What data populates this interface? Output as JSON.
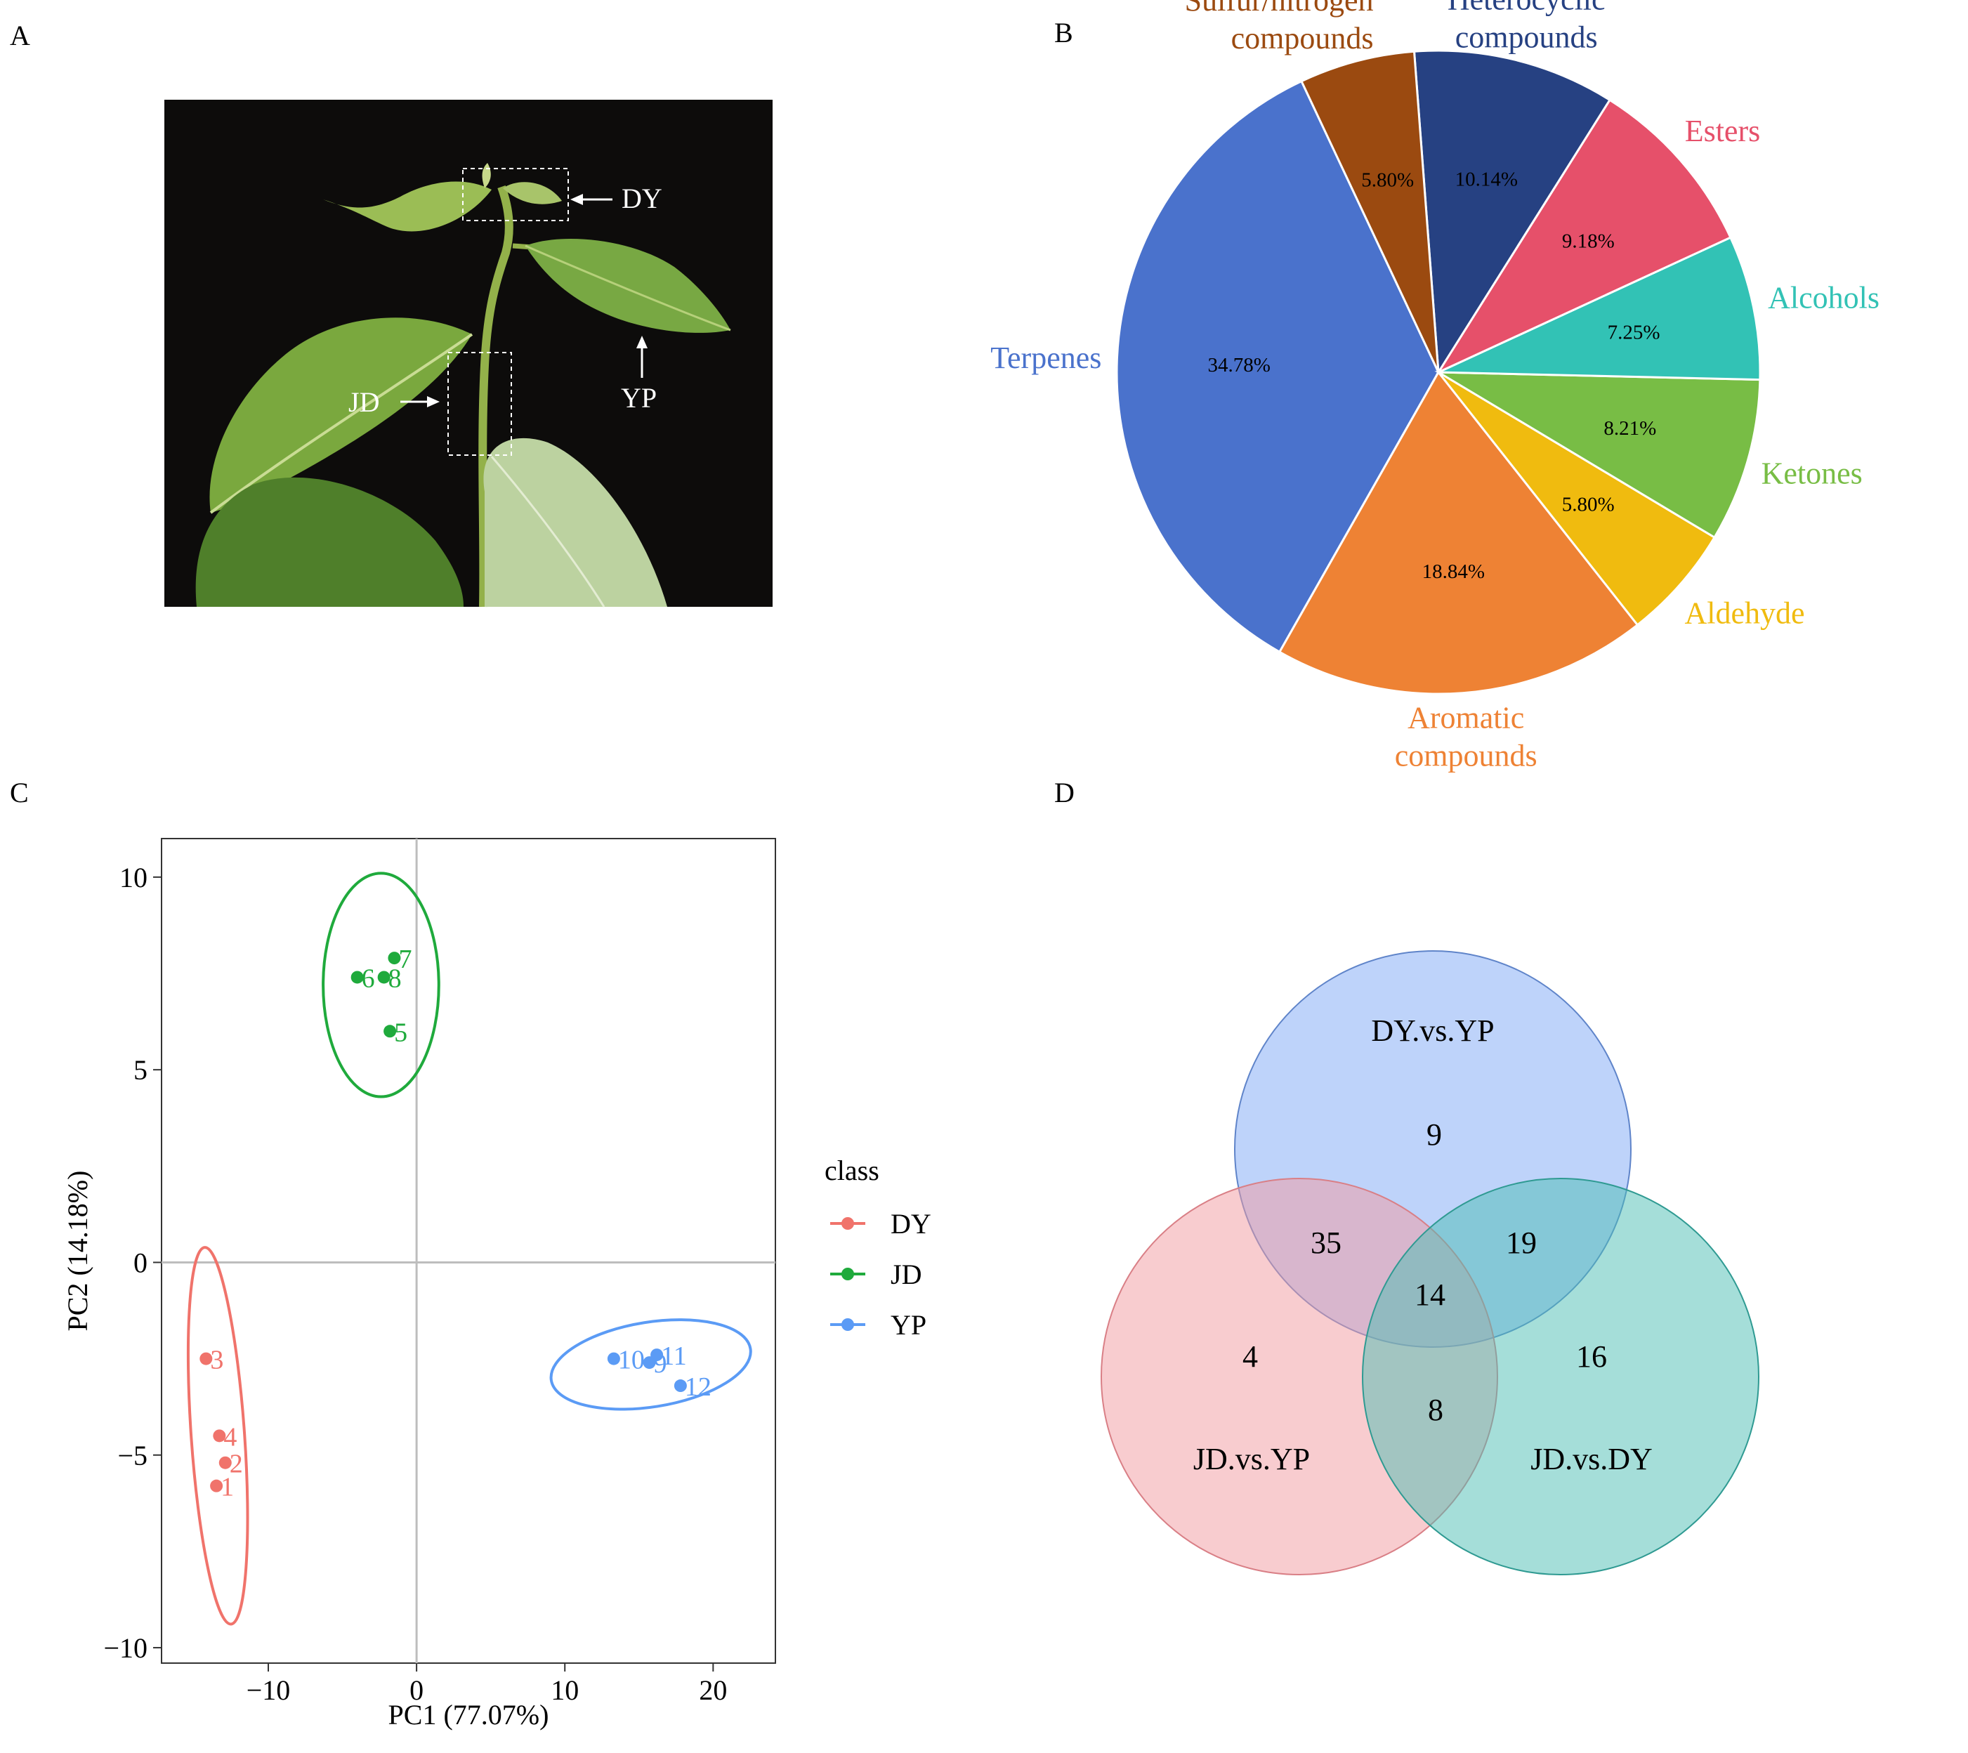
{
  "panel_labels": [
    "A",
    "B",
    "C",
    "D"
  ],
  "photo": {
    "labels": [
      "DY",
      "JD",
      "YP"
    ],
    "colors": {
      "background": "#0d0c0b",
      "leaf": "#6a9a3a",
      "leaf_light": "#a8c46a",
      "leaf_dark": "#3f6d20",
      "stem": "#93b14a"
    }
  },
  "chart_data": [
    {
      "type": "pie",
      "panel": "B",
      "slices": [
        {
          "label": "Terpenes",
          "value": 34.78,
          "pct_label": "34.78%",
          "color": "#4a72cc"
        },
        {
          "label": "Aromatic compounds",
          "value": 18.84,
          "pct_label": "18.84%",
          "color": "#ee8234",
          "lines": [
            "Aromatic",
            "compounds"
          ]
        },
        {
          "label": "Aldehyde",
          "value": 5.8,
          "pct_label": "5.80%",
          "color": "#f0bb0f"
        },
        {
          "label": "Ketones",
          "value": 8.21,
          "pct_label": "8.21%",
          "color": "#78bd45"
        },
        {
          "label": "Alcohols",
          "value": 7.25,
          "pct_label": "7.25%",
          "color": "#32c2b5"
        },
        {
          "label": "Esters",
          "value": 9.18,
          "pct_label": "9.18%",
          "color": "#e6506a"
        },
        {
          "label": "Heterocyclic compounds",
          "value": 10.14,
          "pct_label": "10.14%",
          "color": "#264182",
          "lines": [
            "Heterocyclic",
            "compounds"
          ]
        },
        {
          "label": "Sulfur/nitrogen compounds",
          "value": 5.8,
          "pct_label": "5.80%",
          "color": "#9b4a10",
          "lines": [
            "Sulfur/nitrogen",
            "compounds"
          ]
        }
      ]
    },
    {
      "type": "scatter",
      "panel": "C",
      "xlabel": "PC1 (77.07%)",
      "ylabel": "PC2 (14.18%)",
      "xlim": [
        -17.2,
        24.2
      ],
      "ylim": [
        -10.4,
        11.0
      ],
      "xticks": [
        -10,
        0,
        10,
        20
      ],
      "yticks": [
        -10,
        -5,
        0,
        5,
        10
      ],
      "xtick_labels": [
        "−10",
        "0",
        "10",
        "20"
      ],
      "ytick_labels": [
        "−10",
        "−5",
        "0",
        "5",
        "10"
      ],
      "legend_title": "class",
      "grid": false,
      "zero_lines": true,
      "series": [
        {
          "name": "DY",
          "color": "#f0736b",
          "points": [
            {
              "x": -13.5,
              "y": -5.8,
              "label": "1"
            },
            {
              "x": -12.9,
              "y": -5.2,
              "label": "2"
            },
            {
              "x": -14.2,
              "y": -2.5,
              "label": "3"
            },
            {
              "x": -13.3,
              "y": -4.5,
              "label": "4"
            }
          ],
          "ellipse": {
            "cx": -13.4,
            "cy": -4.5,
            "rx": 1.8,
            "ry": 4.9,
            "angle": -4
          }
        },
        {
          "name": "JD",
          "color": "#1faa3c",
          "points": [
            {
              "x": -1.8,
              "y": 6.0,
              "label": "5"
            },
            {
              "x": -4.0,
              "y": 7.4,
              "label": "6"
            },
            {
              "x": -1.5,
              "y": 7.9,
              "label": "7"
            },
            {
              "x": -2.2,
              "y": 7.4,
              "label": "8"
            }
          ],
          "ellipse": {
            "cx": -2.4,
            "cy": 7.2,
            "rx": 3.9,
            "ry": 2.9,
            "angle": 0
          }
        },
        {
          "name": "YP",
          "color": "#5b9bf5",
          "points": [
            {
              "x": 15.7,
              "y": -2.6,
              "label": "9"
            },
            {
              "x": 13.3,
              "y": -2.5,
              "label": "10"
            },
            {
              "x": 16.2,
              "y": -2.4,
              "label": "11"
            },
            {
              "x": 17.8,
              "y": -3.2,
              "label": "12"
            }
          ],
          "ellipse": {
            "cx": 15.8,
            "cy": -2.65,
            "rx": 6.8,
            "ry": 1.1,
            "angle": -9
          }
        }
      ]
    },
    {
      "type": "venn",
      "panel": "D",
      "sets": [
        {
          "name": "DY.vs.YP",
          "color": "#7ea8f5"
        },
        {
          "name": "JD.vs.YP",
          "color": "#f29aa0"
        },
        {
          "name": "JD.vs.DY",
          "color": "#4bbdb4"
        }
      ],
      "regions": [
        {
          "sets": [
            "DY.vs.YP"
          ],
          "value": 9
        },
        {
          "sets": [
            "DY.vs.YP",
            "JD.vs.YP"
          ],
          "value": 35
        },
        {
          "sets": [
            "DY.vs.YP",
            "JD.vs.DY"
          ],
          "value": 19
        },
        {
          "sets": [
            "DY.vs.YP",
            "JD.vs.YP",
            "JD.vs.DY"
          ],
          "value": 14
        },
        {
          "sets": [
            "JD.vs.YP"
          ],
          "value": 4
        },
        {
          "sets": [
            "JD.vs.DY"
          ],
          "value": 16
        },
        {
          "sets": [
            "JD.vs.YP",
            "JD.vs.DY"
          ],
          "value": 8
        }
      ]
    }
  ]
}
